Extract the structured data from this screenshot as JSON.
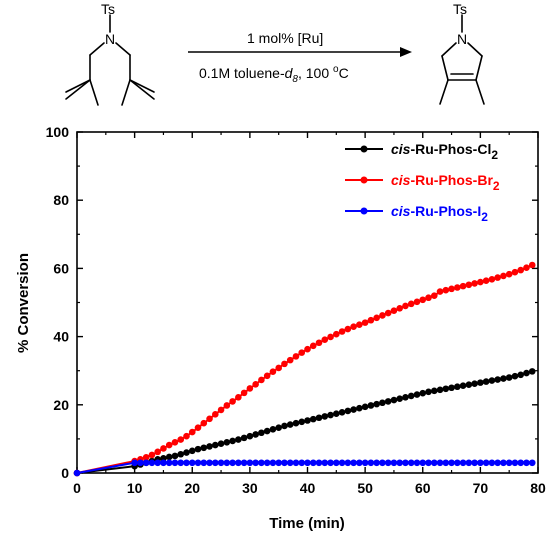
{
  "scheme": {
    "reactant_group": "Ts",
    "reactant_atom": "N",
    "product_group": "Ts",
    "product_atom": "N",
    "conditions_above": "1 mol% [Ru]",
    "conditions_below_prefix": "0.1M toluene-",
    "conditions_below_italic": "d",
    "conditions_below_sub": "8",
    "conditions_below_suffix": ", 100 ",
    "degree_sup": "o",
    "degree_unit": "C"
  },
  "chart_data": {
    "type": "line",
    "xlabel": "Time (min)",
    "ylabel": "% Conversion",
    "xlim": [
      0,
      80
    ],
    "ylim": [
      0,
      100
    ],
    "xticks": [
      0,
      10,
      20,
      30,
      40,
      50,
      60,
      70,
      80
    ],
    "yticks": [
      0,
      20,
      40,
      60,
      80,
      100
    ],
    "grid": false,
    "legend_position": "top-right",
    "series": [
      {
        "name_italic": "cis",
        "name_main": "-Ru-Phos-Cl",
        "name_sub": "2",
        "color": "#000000",
        "x": [
          0,
          10,
          11,
          12,
          13,
          14,
          15,
          16,
          17,
          18,
          19,
          20,
          21,
          22,
          23,
          24,
          25,
          26,
          27,
          28,
          29,
          30,
          31,
          32,
          33,
          34,
          35,
          36,
          37,
          38,
          39,
          40,
          41,
          42,
          43,
          44,
          45,
          46,
          47,
          48,
          49,
          50,
          51,
          52,
          53,
          54,
          55,
          56,
          57,
          58,
          59,
          60,
          61,
          62,
          63,
          64,
          65,
          66,
          67,
          68,
          69,
          70,
          71,
          72,
          73,
          74,
          75,
          76,
          77,
          78,
          79
        ],
        "y": [
          0,
          2,
          2.5,
          3,
          3.5,
          4,
          4.3,
          4.7,
          5,
          5.5,
          6,
          6.5,
          7,
          7.4,
          7.8,
          8.2,
          8.6,
          9,
          9.4,
          9.8,
          10.3,
          10.8,
          11.3,
          11.8,
          12.3,
          12.8,
          13.3,
          13.8,
          14.2,
          14.6,
          15,
          15.4,
          15.8,
          16.2,
          16.6,
          17,
          17.4,
          17.8,
          18.2,
          18.6,
          19,
          19.4,
          19.8,
          20.2,
          20.6,
          21,
          21.4,
          21.8,
          22.2,
          22.6,
          23,
          23.4,
          23.8,
          24.1,
          24.4,
          24.7,
          25,
          25.3,
          25.6,
          25.9,
          26.2,
          26.5,
          26.8,
          27.1,
          27.4,
          27.7,
          28,
          28.4,
          28.8,
          29.3,
          29.8
        ]
      },
      {
        "name_italic": "cis",
        "name_main": "-Ru-Phos-Br",
        "name_sub": "2",
        "color": "#ff0000",
        "x": [
          0,
          10,
          11,
          12,
          13,
          14,
          15,
          16,
          17,
          18,
          19,
          20,
          21,
          22,
          23,
          24,
          25,
          26,
          27,
          28,
          29,
          30,
          31,
          32,
          33,
          34,
          35,
          36,
          37,
          38,
          39,
          40,
          41,
          42,
          43,
          44,
          45,
          46,
          47,
          48,
          49,
          50,
          51,
          52,
          53,
          54,
          55,
          56,
          57,
          58,
          59,
          60,
          61,
          62,
          63,
          64,
          65,
          66,
          67,
          68,
          69,
          70,
          71,
          72,
          73,
          74,
          75,
          76,
          77,
          78,
          79
        ],
        "y": [
          0,
          3.5,
          4,
          4.6,
          5.3,
          6.2,
          7.2,
          8.2,
          9,
          9.8,
          10.8,
          12,
          13.3,
          14.6,
          15.9,
          17.2,
          18.5,
          19.8,
          21,
          22.2,
          23.5,
          24.8,
          26,
          27.3,
          28.5,
          29.7,
          30.8,
          32,
          33.1,
          34.2,
          35.3,
          36.3,
          37.3,
          38.2,
          39.1,
          39.9,
          40.7,
          41.5,
          42.2,
          42.9,
          43.5,
          44.1,
          44.8,
          45.5,
          46.2,
          46.9,
          47.6,
          48.3,
          49,
          49.6,
          50.2,
          50.8,
          51.4,
          52,
          53.2,
          53.6,
          54,
          54.4,
          54.8,
          55.2,
          55.6,
          56,
          56.4,
          56.8,
          57.3,
          57.8,
          58.3,
          58.9,
          59.5,
          60.2,
          61
        ]
      },
      {
        "name_italic": "cis",
        "name_main": "-Ru-Phos-I",
        "name_sub": "2",
        "color": "#0000ff",
        "x": [
          0,
          10,
          11,
          12,
          13,
          14,
          15,
          16,
          17,
          18,
          19,
          20,
          21,
          22,
          23,
          24,
          25,
          26,
          27,
          28,
          29,
          30,
          31,
          32,
          33,
          34,
          35,
          36,
          37,
          38,
          39,
          40,
          41,
          42,
          43,
          44,
          45,
          46,
          47,
          48,
          49,
          50,
          51,
          52,
          53,
          54,
          55,
          56,
          57,
          58,
          59,
          60,
          61,
          62,
          63,
          64,
          65,
          66,
          67,
          68,
          69,
          70,
          71,
          72,
          73,
          74,
          75,
          76,
          77,
          78,
          79
        ],
        "y": [
          0,
          3,
          3,
          3,
          3,
          3,
          3,
          3,
          3,
          3,
          3,
          3,
          3,
          3,
          3,
          3,
          3,
          3,
          3,
          3,
          3,
          3,
          3,
          3,
          3,
          3,
          3,
          3,
          3,
          3,
          3,
          3,
          3,
          3,
          3,
          3,
          3,
          3,
          3,
          3,
          3,
          3,
          3,
          3,
          3,
          3,
          3,
          3,
          3,
          3,
          3,
          3,
          3,
          3,
          3,
          3,
          3,
          3,
          3,
          3,
          3,
          3,
          3,
          3,
          3,
          3,
          3,
          3,
          3,
          3,
          3
        ]
      }
    ]
  }
}
